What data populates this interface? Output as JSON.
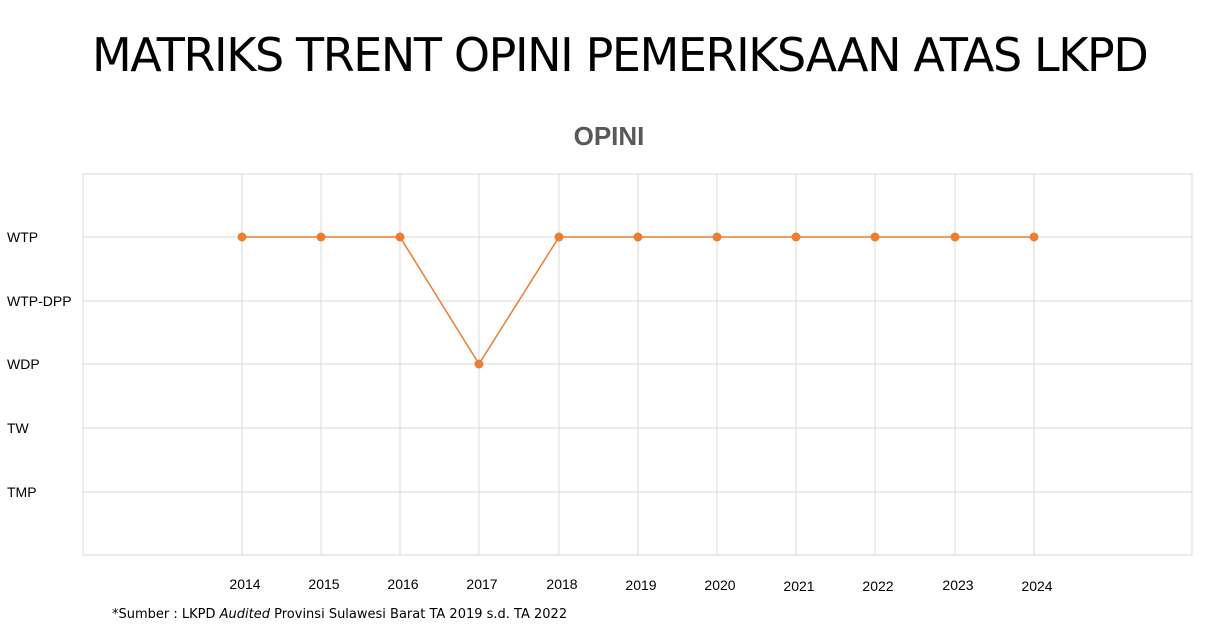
{
  "page": {
    "title": "MATRIKS TRENT OPINI PEMERIKSAAN ATAS LKPD"
  },
  "chart_data": {
    "type": "line",
    "title": "OPINI",
    "y_categories": [
      "WTP",
      "WTP-DPP",
      "WDP",
      "TW",
      "TMP"
    ],
    "categories": [
      "2014",
      "2015",
      "2016",
      "2017",
      "2018",
      "2019",
      "2020",
      "2021",
      "2022",
      "2023",
      "2024"
    ],
    "series": [
      {
        "values": [
          "WTP",
          "WTP",
          "WTP",
          "WDP",
          "WTP",
          "WTP",
          "WTP",
          "WTP",
          "WTP",
          "WTP",
          "WTP"
        ],
        "color": "#ED7D31"
      }
    ],
    "grid": true,
    "gridline_color": "#D9D9D9"
  },
  "footnote": {
    "prefix": "*Sumber : LKPD ",
    "emphasis": "Audited",
    "suffix": " Provinsi Sulawesi Barat TA 2019 s.d. TA 2022"
  }
}
